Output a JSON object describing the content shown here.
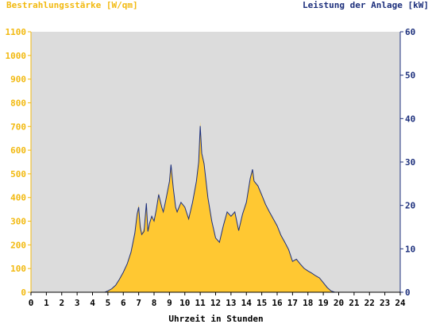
{
  "chart_data": {
    "type": "area",
    "title": "",
    "ylabel_left": "Bestrahlungsstärke [W/qm]",
    "ylabel_right": "Leistung der Anlage [kW]",
    "xlabel": "Uhrzeit in Stunden",
    "x_ticks": [
      "0",
      "1",
      "2",
      "3",
      "4",
      "5",
      "6",
      "7",
      "8",
      "9",
      "10",
      "11",
      "12",
      "13",
      "14",
      "15",
      "16",
      "17",
      "18",
      "19",
      "20",
      "21",
      "22",
      "23",
      "24"
    ],
    "y_left_ticks": [
      "0",
      "100",
      "200",
      "300",
      "400",
      "500",
      "600",
      "700",
      "800",
      "900",
      "1000",
      "1100"
    ],
    "y_right_ticks": [
      "0",
      "10",
      "20",
      "30",
      "40",
      "50",
      "60"
    ],
    "xlim": [
      0,
      24
    ],
    "ylim_left": [
      0,
      1100
    ],
    "ylim_right": [
      0,
      60
    ],
    "grid": false,
    "colors": {
      "irradiance": "#ffc832",
      "power": "#1c2f7c",
      "plot_bg": "#dcdcdc",
      "left_axis": "#f2b90f",
      "right_axis": "#1c2f7c"
    },
    "series": [
      {
        "name": "Bestrahlungsstärke [W/qm]",
        "axis": "left",
        "x": [
          0,
          4.8,
          5,
          5.25,
          5.5,
          5.75,
          6,
          6.25,
          6.5,
          6.75,
          6.9,
          7,
          7.1,
          7.2,
          7.35,
          7.5,
          7.6,
          7.7,
          7.85,
          8,
          8.15,
          8.3,
          8.5,
          8.6,
          8.75,
          9,
          9.1,
          9.25,
          9.4,
          9.5,
          9.75,
          10,
          10.25,
          10.5,
          10.75,
          10.9,
          11,
          11.1,
          11.25,
          11.5,
          11.75,
          12,
          12.25,
          12.5,
          12.75,
          13,
          13.25,
          13.5,
          13.75,
          14,
          14.25,
          14.4,
          14.5,
          14.75,
          15,
          15.25,
          15.5,
          15.75,
          16,
          16.25,
          16.5,
          16.75,
          17,
          17.25,
          17.5,
          17.75,
          18,
          18.25,
          18.5,
          18.75,
          19,
          19.25,
          19.5,
          19.75,
          20,
          20.25,
          24
        ],
        "values": [
          0,
          0,
          5,
          15,
          30,
          55,
          85,
          120,
          170,
          250,
          330,
          370,
          300,
          250,
          270,
          380,
          260,
          290,
          320,
          300,
          350,
          420,
          360,
          340,
          390,
          470,
          540,
          440,
          360,
          340,
          380,
          360,
          310,
          380,
          470,
          560,
          720,
          590,
          550,
          400,
          300,
          230,
          210,
          280,
          340,
          320,
          340,
          260,
          330,
          380,
          480,
          520,
          470,
          450,
          410,
          370,
          340,
          310,
          280,
          240,
          210,
          180,
          130,
          140,
          120,
          100,
          90,
          80,
          70,
          60,
          40,
          20,
          5,
          0,
          0,
          0,
          0
        ]
      },
      {
        "name": "Leistung der Anlage [kW]",
        "axis": "right",
        "x": [
          0,
          4.8,
          5,
          5.25,
          5.5,
          5.75,
          6,
          6.25,
          6.5,
          6.75,
          6.9,
          7,
          7.1,
          7.2,
          7.35,
          7.5,
          7.6,
          7.7,
          7.85,
          8,
          8.15,
          8.3,
          8.5,
          8.6,
          8.75,
          9,
          9.1,
          9.25,
          9.4,
          9.5,
          9.75,
          10,
          10.25,
          10.5,
          10.75,
          10.9,
          11,
          11.1,
          11.25,
          11.5,
          11.75,
          12,
          12.25,
          12.5,
          12.75,
          13,
          13.25,
          13.5,
          13.75,
          14,
          14.25,
          14.4,
          14.5,
          14.75,
          15,
          15.25,
          15.5,
          15.75,
          16,
          16.25,
          16.5,
          16.75,
          17,
          17.25,
          17.5,
          17.75,
          18,
          18.25,
          18.5,
          18.75,
          19,
          19.25,
          19.5,
          19.75,
          20,
          20.25,
          24
        ],
        "values": [
          0,
          0,
          0.3,
          0.8,
          1.6,
          3,
          4.6,
          6.5,
          9.2,
          13.6,
          18,
          19.6,
          15,
          13.3,
          14,
          20.5,
          14,
          15.8,
          17.5,
          16.4,
          19.1,
          22.5,
          19.6,
          18.5,
          21,
          25.5,
          29.4,
          24,
          19.6,
          18.5,
          20.7,
          19.6,
          16.9,
          20.7,
          25.5,
          30,
          38.3,
          32,
          29.6,
          21.8,
          16.4,
          12.5,
          11.5,
          15.3,
          18.5,
          17.5,
          18.5,
          14.2,
          18,
          20.7,
          26.2,
          28.3,
          25.6,
          24.5,
          22.4,
          20.2,
          18.5,
          16.9,
          15.3,
          13.1,
          11.5,
          9.8,
          7.1,
          7.6,
          6.5,
          5.5,
          4.9,
          4.4,
          3.8,
          3.3,
          2.2,
          1.1,
          0.3,
          0,
          0,
          0,
          0
        ]
      }
    ]
  }
}
